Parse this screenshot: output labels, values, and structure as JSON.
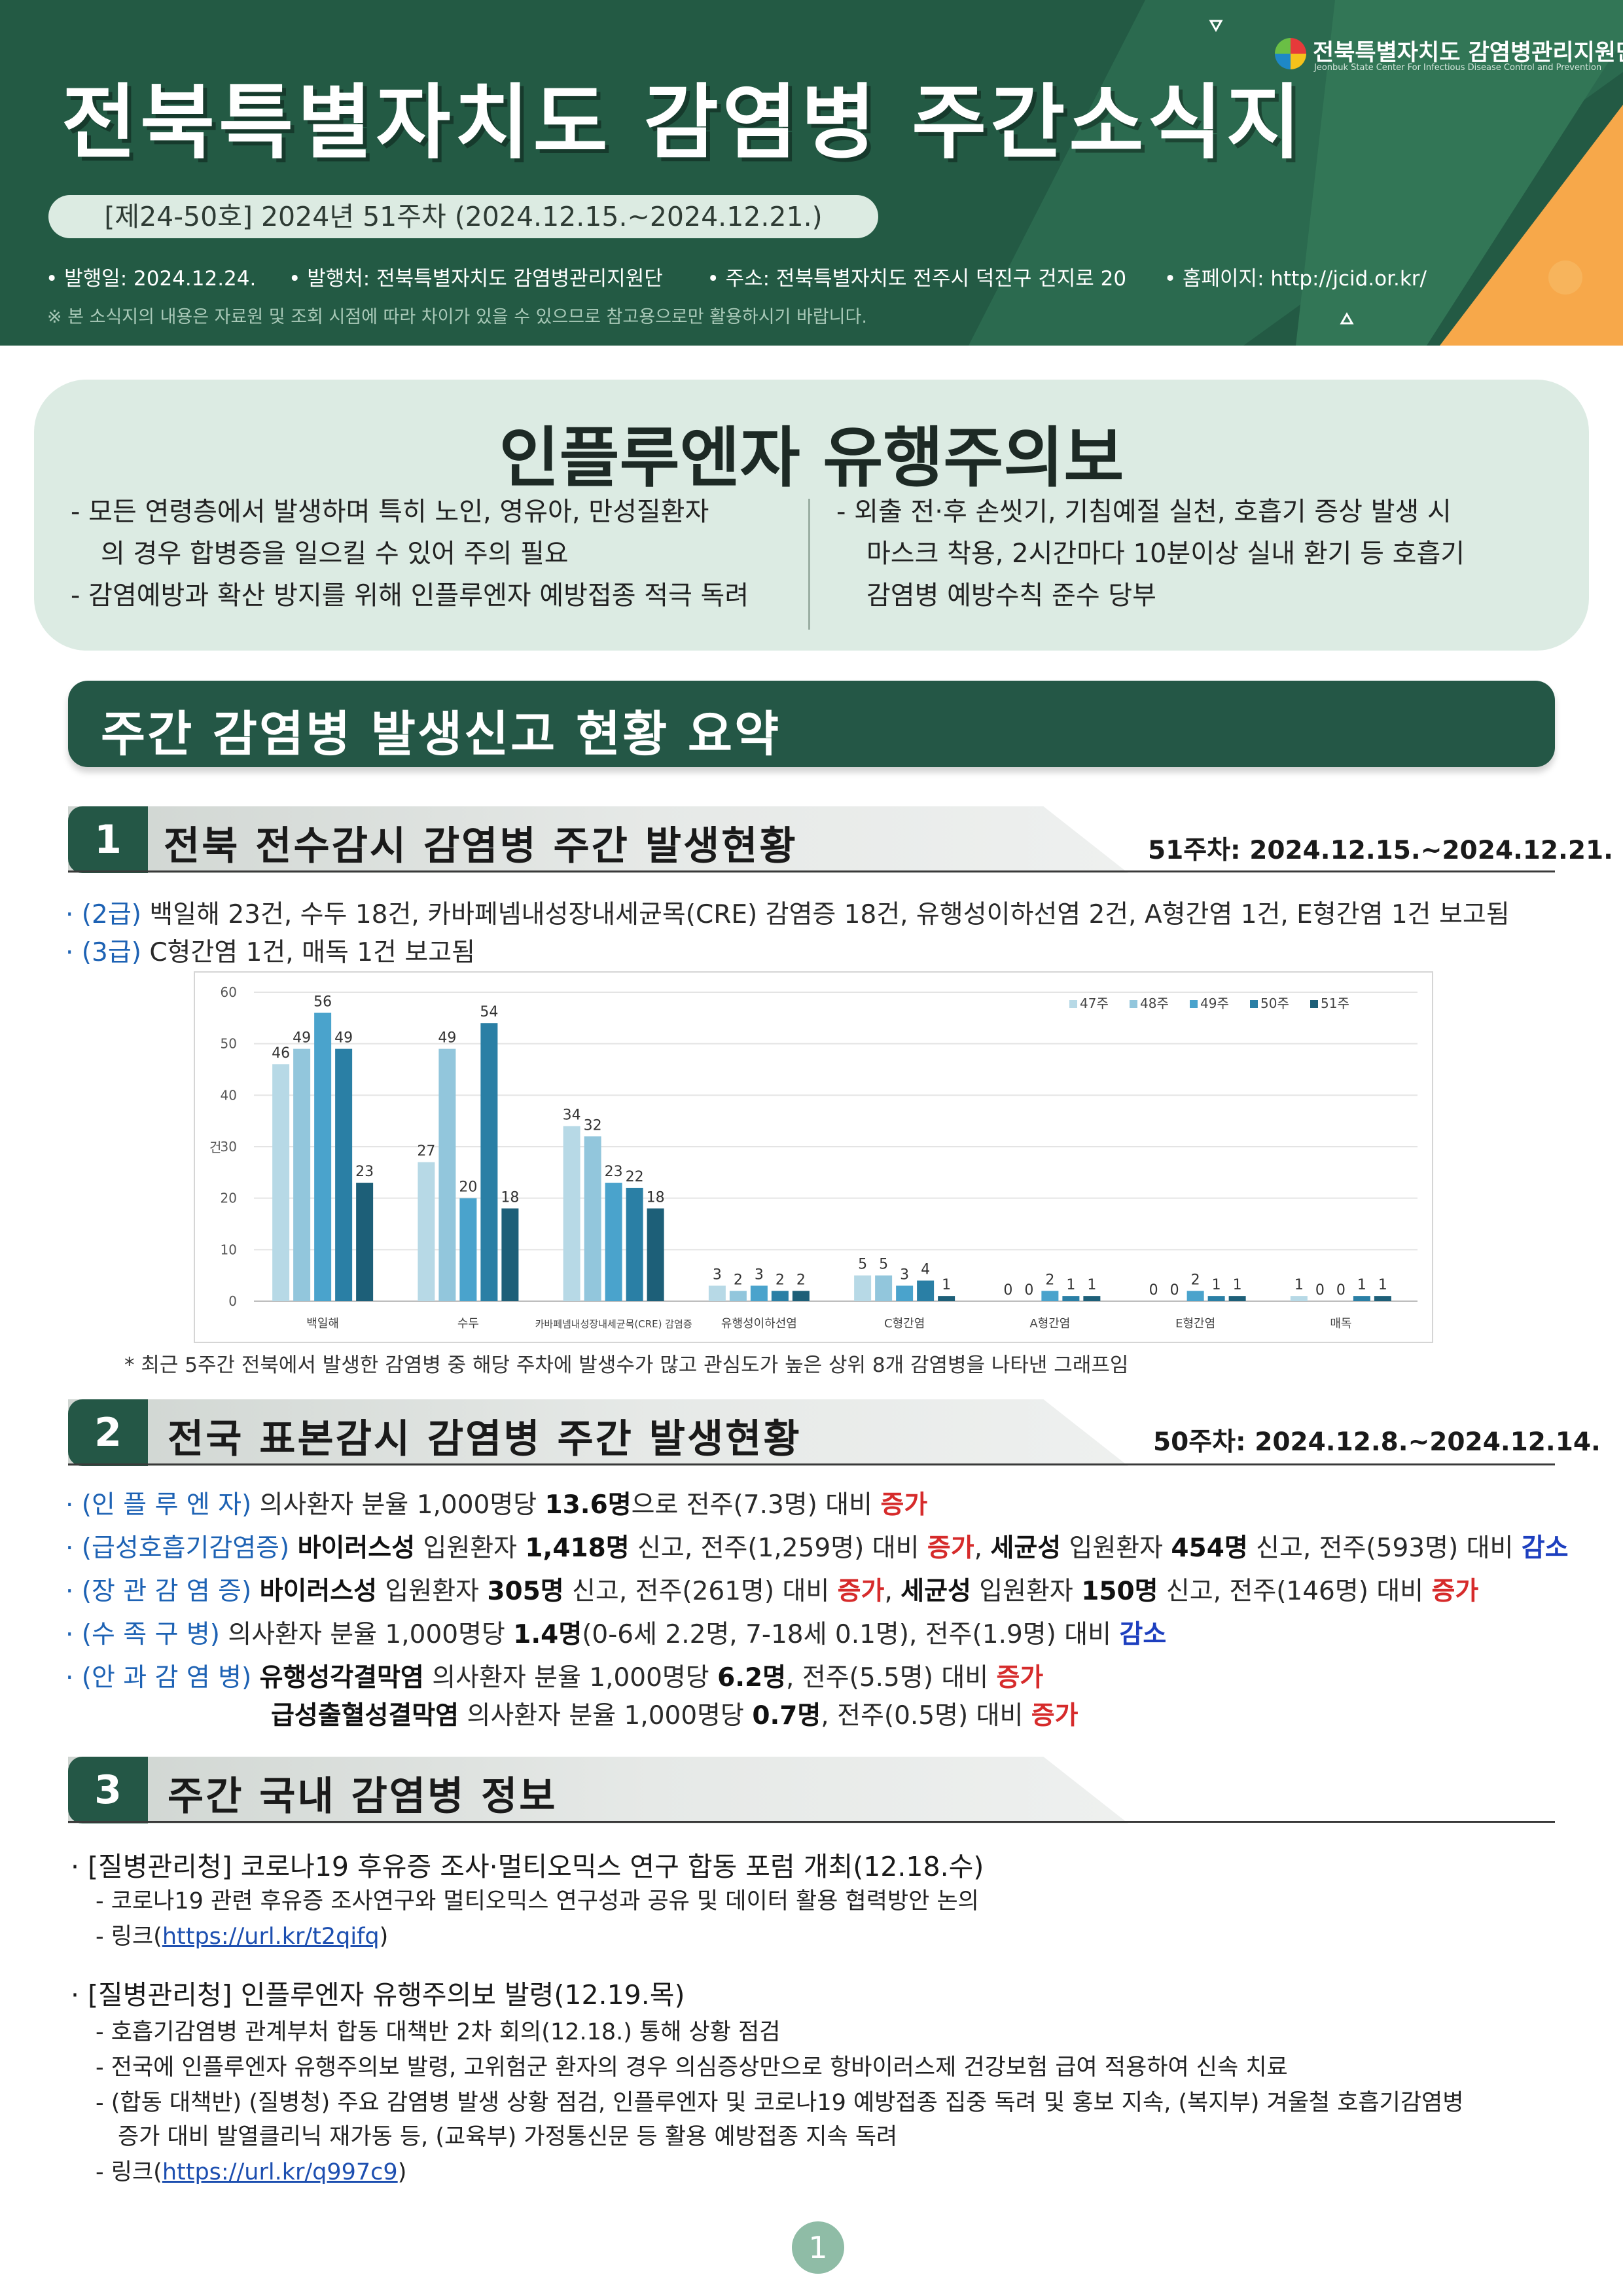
{
  "header": {
    "title": "전북특별자치도 감염병 주간소식지",
    "issue": "[제24-50호] 2024년 51주차 (2024.12.15.~2024.12.21.)",
    "publish_date": "• 발행일: 2024.12.24.",
    "publisher": "• 발행처: 전북특별자치도 감염병관리지원단",
    "address": "• 주소: 전북특별자치도 전주시 덕진구 건지로 20",
    "homepage": "• 홈페이지: http://jcid.or.kr/",
    "note": "※ 본 소식지의 내용은 자료원 및 조회 시점에 따라 차이가 있을 수 있으므로 참고용으로만 활용하시기 바랍니다.",
    "logo_name": "전북특별자치도 감염병관리지원단",
    "logo_sub": "Jeonbuk State Center For Infectious Disease Control and Prevention",
    "colors": {
      "header_bg": "#235a44",
      "accent_orange": "#f7a84a",
      "accent_stripe": "#2f6e52"
    }
  },
  "alert": {
    "title": "인플루엔자 유행주의보",
    "left_lines": [
      "- 모든 연령층에서 발생하며 특히 노인, 영유아, 만성질환자",
      "의 경우 합병증을 일으킬 수 있어 주의 필요",
      "- 감염예방과 확산 방지를 위해 인플루엔자 예방접종 적극 독려"
    ],
    "right_lines": [
      "- 외출 전·후 손씻기, 기침예절 실천, 호흡기 증상 발생 시",
      "마스크 착용, 2시간마다 10분이상 실내 환기 등 호흡기",
      "감염병 예방수칙 준수 당부"
    ]
  },
  "summary_title": "주간 감염병 발생신고 현황 요약",
  "section1": {
    "num": "1",
    "title": "전북 전수감시 감염병 주간 발생현황",
    "date": "51주차: 2024.12.15.~2024.12.21.",
    "lines": [
      {
        "tag": "· (2급)",
        "text": " 백일해 23건, 수두 18건, 카바페넴내성장내세균목(CRE) 감염증 18건, 유행성이하선염 2건, A형간염 1건, E형간염 1건 보고됨"
      },
      {
        "tag": "· (3급)",
        "text": " C형간염 1건, 매독 1건 보고됨"
      }
    ],
    "chart_note": "* 최근 5주간 전북에서 발생한 감염병 중 해당 주차에 발생수가 많고 관심도가 높은 상위 8개 감염병을 나타낸 그래프임"
  },
  "chart_data": {
    "type": "bar",
    "ylabel": "건",
    "ylim": [
      0,
      60
    ],
    "yticks": [
      0,
      10,
      20,
      30,
      40,
      50,
      60
    ],
    "legend_position": "top-right",
    "categories": [
      "백일해",
      "수두",
      "카바페넴내성장내세균목(CRE) 감염증",
      "유행성이하선염",
      "C형간염",
      "A형간염",
      "E형간염",
      "매독"
    ],
    "series": [
      {
        "name": "47주",
        "color": "#b7d9e6",
        "values": [
          46,
          27,
          34,
          3,
          5,
          0,
          0,
          1
        ]
      },
      {
        "name": "48주",
        "color": "#92c6dc",
        "values": [
          49,
          49,
          32,
          2,
          5,
          0,
          0,
          0
        ]
      },
      {
        "name": "49주",
        "color": "#4aa3cc",
        "values": [
          56,
          20,
          23,
          3,
          3,
          2,
          2,
          0
        ]
      },
      {
        "name": "50주",
        "color": "#2a7fa5",
        "values": [
          49,
          54,
          22,
          2,
          4,
          1,
          1,
          1
        ]
      },
      {
        "name": "51주",
        "color": "#1d5f78",
        "values": [
          23,
          18,
          18,
          2,
          1,
          1,
          1,
          1
        ]
      }
    ]
  },
  "section2": {
    "num": "2",
    "title": "전국 표본감시 감염병 주간 발생현황",
    "date": "50주차: 2024.12.8.~2024.12.14.",
    "rows": [
      [
        [
          "blue",
          "· (인 플 루 엔 자) "
        ],
        [
          "n",
          "의사환자 분율 1,000명당 "
        ],
        [
          "b",
          "13.6명"
        ],
        [
          "n",
          "으로 전주(7.3명) 대비 "
        ],
        [
          "red",
          "증가"
        ]
      ],
      [
        [
          "blue",
          "· (급성호흡기감염증) "
        ],
        [
          "b",
          "바이러스성"
        ],
        [
          "n",
          " 입원환자 "
        ],
        [
          "b",
          "1,418명"
        ],
        [
          "n",
          " 신고, 전주(1,259명) 대비 "
        ],
        [
          "red",
          "증가"
        ],
        [
          "n",
          ", "
        ],
        [
          "b",
          "세균성"
        ],
        [
          "n",
          " 입원환자 "
        ],
        [
          "b",
          "454명"
        ],
        [
          "n",
          " 신고, 전주(593명) 대비 "
        ],
        [
          "blueb",
          "감소"
        ]
      ],
      [
        [
          "blue",
          "· (장 관 감 염 증) "
        ],
        [
          "b",
          "바이러스성"
        ],
        [
          "n",
          " 입원환자 "
        ],
        [
          "b",
          "305명"
        ],
        [
          "n",
          " 신고, 전주(261명) 대비 "
        ],
        [
          "red",
          "증가"
        ],
        [
          "n",
          ", "
        ],
        [
          "b",
          "세균성"
        ],
        [
          "n",
          " 입원환자 "
        ],
        [
          "b",
          "150명"
        ],
        [
          "n",
          " 신고, 전주(146명) 대비 "
        ],
        [
          "red",
          "증가"
        ]
      ],
      [
        [
          "blue",
          "· (수   족   구   병) "
        ],
        [
          "n",
          "의사환자 분율 1,000명당 "
        ],
        [
          "b",
          "1.4명"
        ],
        [
          "n",
          "(0-6세 2.2명, 7-18세 0.1명), 전주(1.9명) 대비 "
        ],
        [
          "blueb",
          "감소"
        ]
      ],
      [
        [
          "blue",
          "· (안 과 감 염 병) "
        ],
        [
          "b",
          "유행성각결막염"
        ],
        [
          "n",
          " 의사환자 분율 1,000명당 "
        ],
        [
          "b",
          "6.2명"
        ],
        [
          "n",
          ", 전주(5.5명) 대비 "
        ],
        [
          "red",
          "증가"
        ]
      ],
      [
        [
          "b",
          "급성출혈성결막염"
        ],
        [
          "n",
          " 의사환자 분율 1,000명당 "
        ],
        [
          "b",
          "0.7명"
        ],
        [
          "n",
          ", 전주(0.5명) 대비 "
        ],
        [
          "red",
          "증가"
        ]
      ]
    ]
  },
  "section3": {
    "num": "3",
    "title": "주간 국내 감염병 정보",
    "item1": {
      "head": "· [질병관리청] 코로나19 후유증 조사·멀티오믹스 연구 합동 포럼 개최(12.18.수)",
      "lines": [
        "- 코로나19 관련 후유증 조사연구와 멀티오믹스 연구성과 공유 및 데이터 활용 협력방안 논의"
      ],
      "link_prefix": "- 링크(",
      "link": "https://url.kr/t2qifq",
      "link_suffix": ")"
    },
    "item2": {
      "head": "· [질병관리청] 인플루엔자 유행주의보 발령(12.19.목)",
      "lines": [
        "- 호흡기감염병 관계부처 합동 대책반 2차 회의(12.18.) 통해 상황 점검",
        "- 전국에 인플루엔자 유행주의보 발령, 고위험군 환자의 경우 의심증상만으로 항바이러스제 건강보험 급여 적용하여 신속 치료",
        "- (합동 대책반) (질병청) 주요 감염병 발생 상황 점검, 인플루엔자 및 코로나19 예방접종 집중 독려 및 홍보 지속, (복지부) 겨울철 호흡기감염병",
        "증가 대비 발열클리닉 재가동 등, (교육부) 가정통신문 등 활용 예방접종 지속 독려"
      ],
      "link_prefix": "- 링크(",
      "link": "https://url.kr/q997c9",
      "link_suffix": ")"
    }
  },
  "page_number": "1"
}
